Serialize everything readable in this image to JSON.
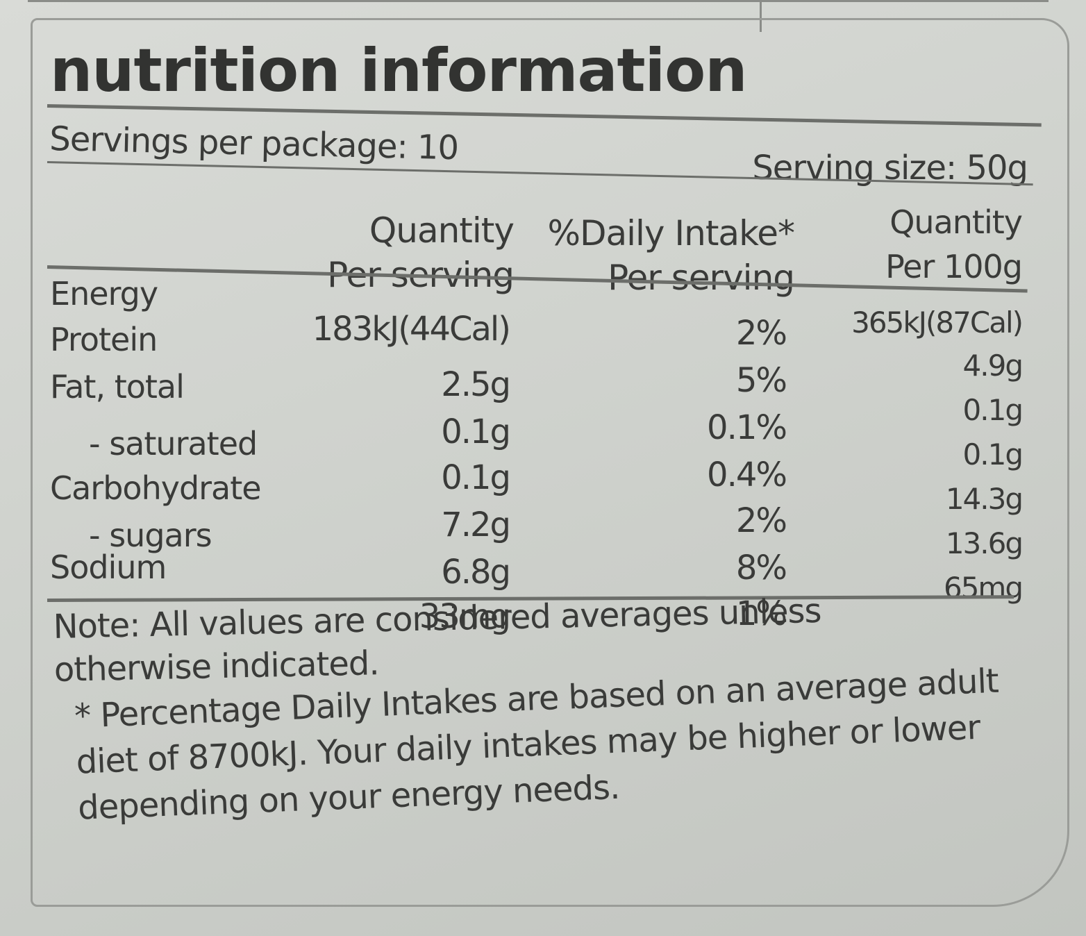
{
  "label": {
    "title": "nutrition information",
    "servings_per_package": "Servings per package: 10",
    "serving_size": "Serving size: 50g",
    "columns": [
      {
        "line1": "Quantity",
        "line2": "Per serving"
      },
      {
        "line1": "%Daily Intake*",
        "line2": "Per serving"
      },
      {
        "line1": "Quantity",
        "line2": "Per 100g"
      }
    ],
    "row_labels": [
      "Energy",
      "Protein",
      "Fat, total",
      "- saturated",
      "Carbohydrate",
      "- sugars",
      "Sodium"
    ],
    "per_serving": [
      "183kJ(44Cal)",
      "2.5g",
      "0.1g",
      "0.1g",
      "7.2g",
      "6.8g",
      "33mg"
    ],
    "daily_intake": [
      "2%",
      "5%",
      "0.1%",
      "0.4%",
      "2%",
      "8%",
      "1%"
    ],
    "per_100g": [
      "365kJ(87Cal)",
      "4.9g",
      "0.1g",
      "0.1g",
      "14.3g",
      "13.6g",
      "65mg"
    ],
    "note": "Note: All values are considered averages unless otherwise indicated.",
    "footnote": "* Percentage Daily Intakes are based on an average adult diet of 8700kJ. Your daily intakes may be higher or lower depending on your energy needs."
  },
  "colors": {
    "ink": "#3a3b39",
    "paper": "#d3d6d1",
    "rule": "#6c6e6a"
  }
}
